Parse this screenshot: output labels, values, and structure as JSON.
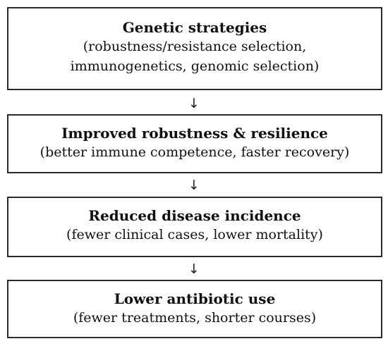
{
  "flow": {
    "steps": [
      {
        "title": "Genetic strategies",
        "lines": [
          "(robustness/resistance selection,",
          "immunogenetics, genomic selection)"
        ]
      },
      {
        "title": "Improved robustness & resilience",
        "lines": [
          "(better immune competence, faster recovery)"
        ]
      },
      {
        "title": "Reduced disease incidence",
        "lines": [
          "(fewer clinical cases, lower mortality)"
        ]
      },
      {
        "title": "Lower antibiotic use",
        "lines": [
          "(fewer treatments, shorter courses)"
        ]
      }
    ],
    "arrow_glyph": "↓"
  }
}
